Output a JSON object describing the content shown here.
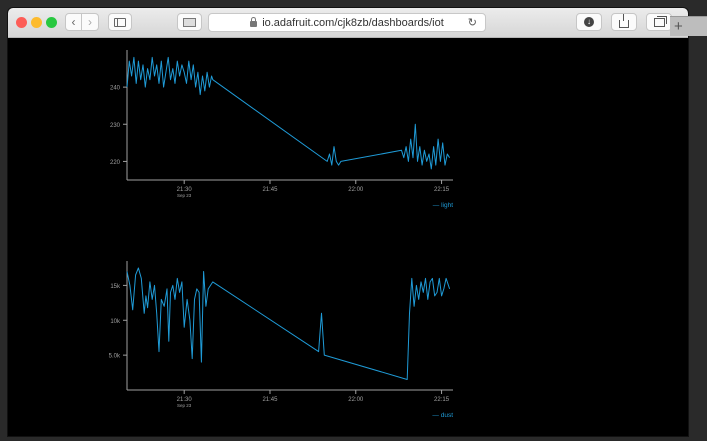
{
  "browser": {
    "url": "io.adafruit.com/cjk8zb/dashboards/iot",
    "newtab_label": "+"
  },
  "colors": {
    "series": "#1f9bd7",
    "axis": "#a0a0a0",
    "background": "#000000"
  },
  "chart_data": [
    {
      "type": "line",
      "series": [
        {
          "name": "light",
          "points": [
            [
              "21:20",
              240
            ],
            [
              "21:20.4",
              247
            ],
            [
              "21:20.8",
              243
            ],
            [
              "21:21.2",
              248
            ],
            [
              "21:21.6",
              241
            ],
            [
              "21:22",
              247
            ],
            [
              "21:22.4",
              242
            ],
            [
              "21:22.8",
              246
            ],
            [
              "21:23.2",
              240
            ],
            [
              "21:23.6",
              245
            ],
            [
              "21:24",
              242
            ],
            [
              "21:24.4",
              248
            ],
            [
              "21:24.8",
              243
            ],
            [
              "21:25.2",
              246
            ],
            [
              "21:25.6",
              241
            ],
            [
              "21:26",
              247
            ],
            [
              "21:26.4",
              240
            ],
            [
              "21:26.8",
              244
            ],
            [
              "21:27.2",
              248
            ],
            [
              "21:27.6",
              242
            ],
            [
              "21:28",
              245
            ],
            [
              "21:28.4",
              241
            ],
            [
              "21:28.8",
              247
            ],
            [
              "21:29.2",
              243
            ],
            [
              "21:29.6",
              246
            ],
            [
              "21:30",
              244
            ],
            [
              "21:30.4",
              241
            ],
            [
              "21:30.8",
              247
            ],
            [
              "21:31.2",
              242
            ],
            [
              "21:31.6",
              246
            ],
            [
              "21:32",
              240
            ],
            [
              "21:32.4",
              244
            ],
            [
              "21:32.8",
              238
            ],
            [
              "21:33.2",
              243
            ],
            [
              "21:33.6",
              239
            ],
            [
              "21:34",
              244
            ],
            [
              "21:34.4",
              240
            ],
            [
              "21:34.8",
              243
            ],
            [
              "21:35",
              242
            ],
            [
              "21:55",
              220
            ],
            [
              "21:55.4",
              222
            ],
            [
              "21:55.8",
              219
            ],
            [
              "21:56.2",
              224
            ],
            [
              "21:56.6",
              220
            ],
            [
              "21:57",
              219
            ],
            [
              "21:57.4",
              220
            ],
            [
              "22:08",
              223
            ],
            [
              "22:08.4",
              221
            ],
            [
              "22:08.8",
              224
            ],
            [
              "22:09.2",
              220
            ],
            [
              "22:09.6",
              226
            ],
            [
              "22:10",
              221
            ],
            [
              "22:10.4",
              230
            ],
            [
              "22:10.8",
              220
            ],
            [
              "22:11.2",
              224
            ],
            [
              "22:11.6",
              219
            ],
            [
              "22:12",
              223
            ],
            [
              "22:12.4",
              220
            ],
            [
              "22:12.8",
              222
            ],
            [
              "22:13.2",
              218
            ],
            [
              "22:13.6",
              224
            ],
            [
              "22:14",
              219
            ],
            [
              "22:14.4",
              226
            ],
            [
              "22:14.8",
              220
            ],
            [
              "22:15.2",
              225
            ],
            [
              "22:15.6",
              219
            ],
            [
              "22:16",
              222
            ],
            [
              "22:16.4",
              221
            ]
          ]
        }
      ],
      "xticks": [
        "21:30",
        "21:45",
        "22:00",
        "22:15"
      ],
      "x_sublabel": "Sep 23",
      "yticks": [
        "220",
        "230",
        "240"
      ],
      "ylim": [
        215,
        250
      ],
      "xlim": [
        "21:20",
        "22:17"
      ]
    },
    {
      "type": "line",
      "series": [
        {
          "name": "dust",
          "points": [
            [
              "21:20",
              17000
            ],
            [
              "21:20.5",
              15000
            ],
            [
              "21:21",
              11500
            ],
            [
              "21:21.5",
              16500
            ],
            [
              "21:22",
              17500
            ],
            [
              "21:22.5",
              16000
            ],
            [
              "21:23",
              11000
            ],
            [
              "21:23.3",
              13500
            ],
            [
              "21:23.6",
              11800
            ],
            [
              "21:24",
              15500
            ],
            [
              "21:24.4",
              13000
            ],
            [
              "21:24.8",
              15000
            ],
            [
              "21:25.2",
              11000
            ],
            [
              "21:25.6",
              5500
            ],
            [
              "21:26",
              13000
            ],
            [
              "21:26.5",
              12000
            ],
            [
              "21:27",
              14500
            ],
            [
              "21:27.3",
              7000
            ],
            [
              "21:27.6",
              14000
            ],
            [
              "21:28",
              15000
            ],
            [
              "21:28.4",
              13000
            ],
            [
              "21:28.8",
              16000
            ],
            [
              "21:29.2",
              14000
            ],
            [
              "21:29.6",
              15500
            ],
            [
              "21:30",
              9000
            ],
            [
              "21:30.5",
              13000
            ],
            [
              "21:31",
              10000
            ],
            [
              "21:31.4",
              4500
            ],
            [
              "21:31.8",
              13000
            ],
            [
              "21:32.2",
              14500
            ],
            [
              "21:32.6",
              14000
            ],
            [
              "21:33",
              4000
            ],
            [
              "21:33.4",
              17000
            ],
            [
              "21:33.8",
              12000
            ],
            [
              "21:34.2",
              14500
            ],
            [
              "21:35",
              15500
            ],
            [
              "21:53.5",
              5500
            ],
            [
              "21:54",
              11000
            ],
            [
              "21:54.5",
              5000
            ],
            [
              "22:09",
              1500
            ],
            [
              "22:09.4",
              11000
            ],
            [
              "22:09.8",
              16000
            ],
            [
              "22:10.2",
              12000
            ],
            [
              "22:10.6",
              15000
            ],
            [
              "22:11",
              13000
            ],
            [
              "22:11.4",
              15500
            ],
            [
              "22:11.8",
              14000
            ],
            [
              "22:12.2",
              16000
            ],
            [
              "22:12.6",
              13000
            ],
            [
              "22:13",
              15500
            ],
            [
              "22:13.4",
              16000
            ],
            [
              "22:13.8",
              13500
            ],
            [
              "22:14.2",
              14000
            ],
            [
              "22:14.6",
              16000
            ],
            [
              "22:15",
              13500
            ],
            [
              "22:15.4",
              14500
            ],
            [
              "22:15.8",
              16000
            ],
            [
              "22:16.4",
              14500
            ]
          ]
        }
      ],
      "xticks": [
        "21:30",
        "21:45",
        "22:00",
        "22:15"
      ],
      "x_sublabel": "Sep 23",
      "yticks": [
        "5.0k",
        "10k",
        "15k"
      ],
      "ytick_values": [
        5000,
        10000,
        15000
      ],
      "ylim": [
        0,
        18500
      ],
      "xlim": [
        "21:20",
        "22:17"
      ]
    }
  ]
}
